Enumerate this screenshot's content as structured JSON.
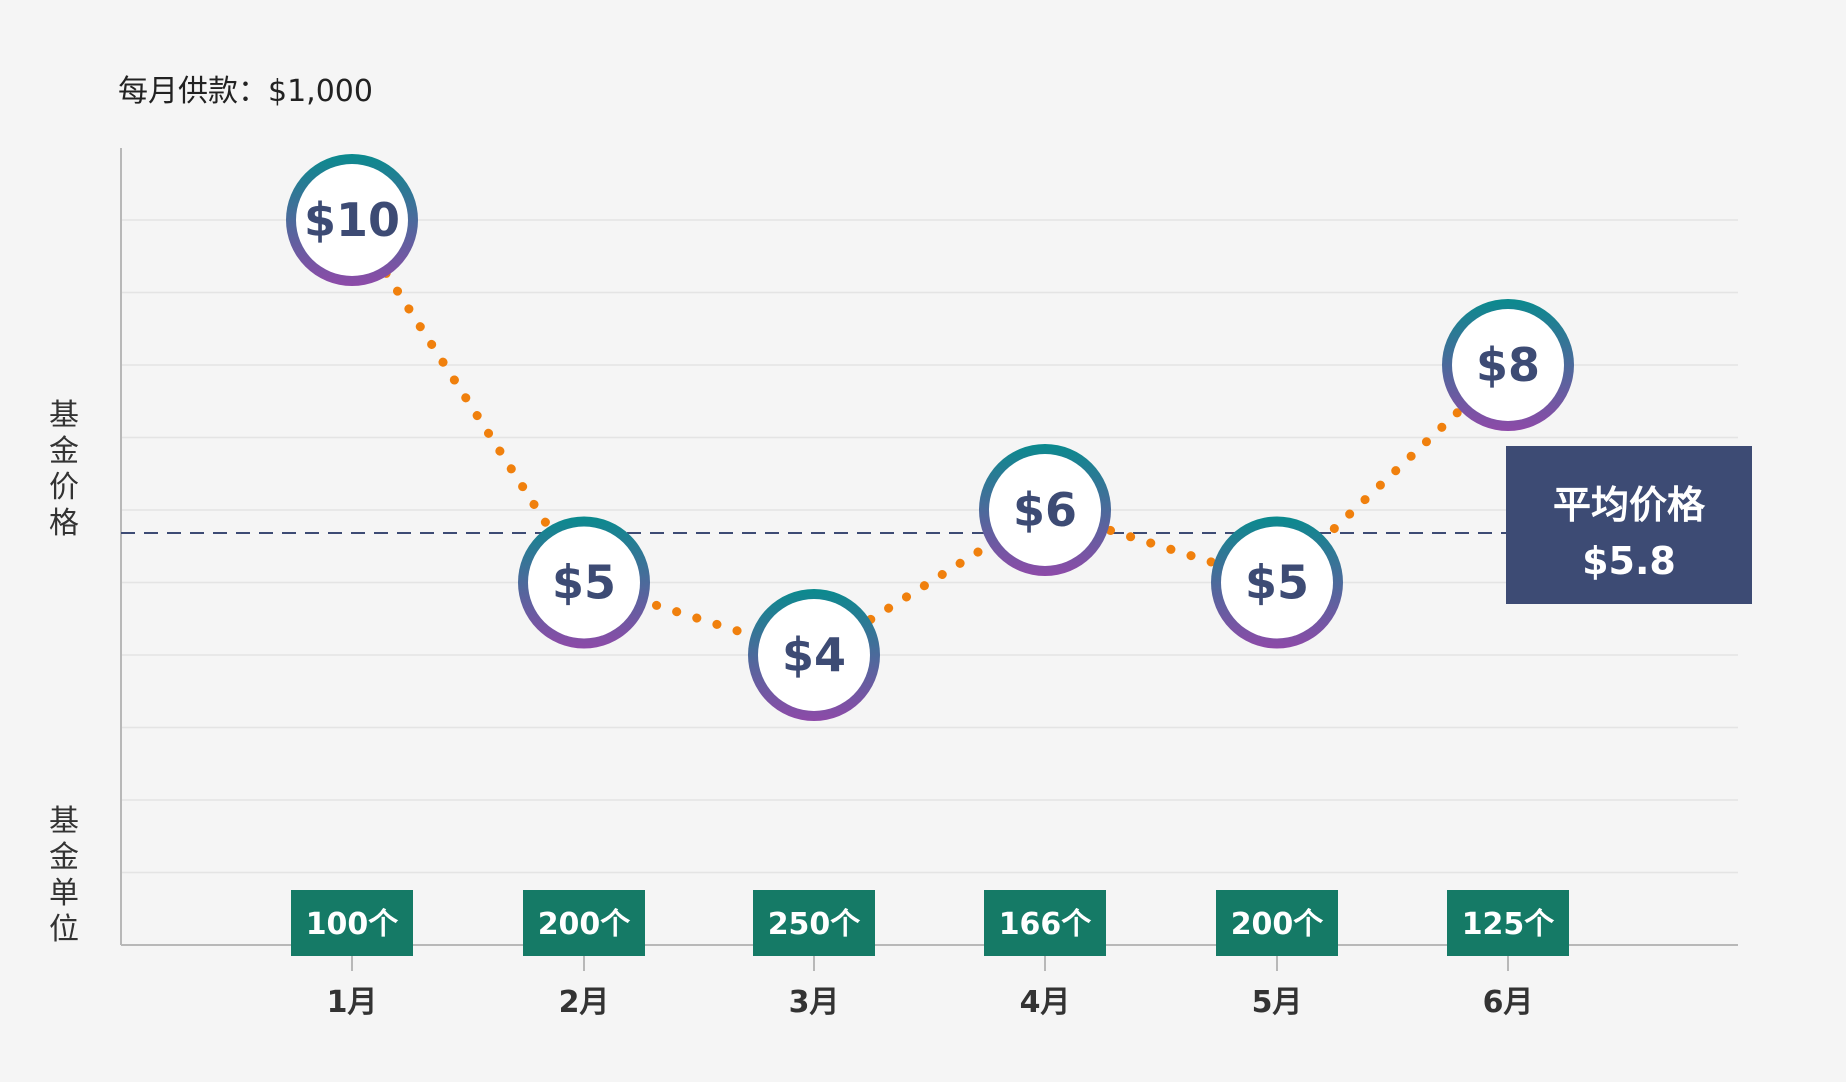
{
  "chart_data": {
    "type": "line",
    "subtitle": "每月供款：$1,000",
    "ylabel": "基金价格",
    "ylabel2": "基金单位",
    "categories": [
      "1月",
      "2月",
      "3月",
      "4月",
      "5月",
      "6月"
    ],
    "prices": [
      10,
      5,
      4,
      6,
      5,
      8
    ],
    "price_labels": [
      "$10",
      "$5",
      "$4",
      "$6",
      "$5",
      "$8"
    ],
    "unit_labels": [
      "100个",
      "200个",
      "250个",
      "166个",
      "200个",
      "125个"
    ],
    "units": [
      100,
      200,
      250,
      166,
      200,
      125
    ],
    "average": {
      "label": "平均价格",
      "value": 5.8,
      "value_label": "$5.8"
    },
    "colors": {
      "line": "#f0800d",
      "marker_ring_top": "#0a8a8e",
      "marker_ring_bottom": "#8d4aa8",
      "marker_text": "#3d4b74",
      "unit_box": "#157a66",
      "average_box": "#3d4b74",
      "average_line": "#3d4b74"
    },
    "grid": true
  }
}
